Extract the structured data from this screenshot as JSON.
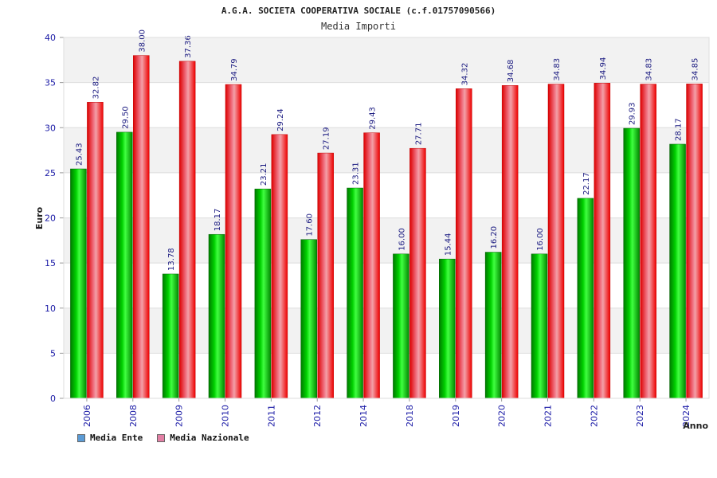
{
  "colors": {
    "ente": "#00c000",
    "nazionale": "#ee1111",
    "legend_ente": "#5b9bd5",
    "legend_nazionale": "#e27fa4",
    "band": "#f2f2f2",
    "grid": "#dddddd"
  },
  "chart_data": {
    "type": "bar",
    "title": "A.G.A. SOCIETA COOPERATIVA SOCIALE (c.f.01757090566)",
    "subtitle": "Media Importi",
    "xlabel": "Anno",
    "ylabel": "Euro",
    "ylim": [
      0,
      40
    ],
    "yticks": [
      0,
      5,
      10,
      15,
      20,
      25,
      30,
      35,
      40
    ],
    "categories": [
      "2006",
      "2008",
      "2009",
      "2010",
      "2011",
      "2012",
      "2014",
      "2018",
      "2019",
      "2020",
      "2021",
      "2022",
      "2023",
      "2024"
    ],
    "series": [
      {
        "name": "Media Ente",
        "values": [
          25.43,
          29.5,
          13.78,
          18.17,
          23.21,
          17.6,
          23.31,
          16.0,
          15.44,
          16.2,
          16.0,
          22.17,
          29.93,
          28.17
        ],
        "labels": [
          "25.43",
          "29.50",
          "13.78",
          "18.17",
          "23.21",
          "17.60",
          "23.31",
          "16.00",
          "15.44",
          "16.20",
          "16.00",
          "22.17",
          "29.93",
          "28.17"
        ]
      },
      {
        "name": "Media Nazionale",
        "values": [
          32.82,
          38.0,
          37.36,
          34.79,
          29.24,
          27.19,
          29.43,
          27.71,
          34.32,
          34.68,
          34.83,
          34.94,
          34.83,
          34.85
        ],
        "labels": [
          "32.82",
          "38.00",
          "37.36",
          "34.79",
          "29.24",
          "27.19",
          "29.43",
          "27.71",
          "34.32",
          "34.68",
          "34.83",
          "34.94",
          "34.83",
          "34.85"
        ]
      }
    ]
  },
  "legend": {
    "ente_label": "Media Ente",
    "nazionale_label": "Media Nazionale"
  }
}
